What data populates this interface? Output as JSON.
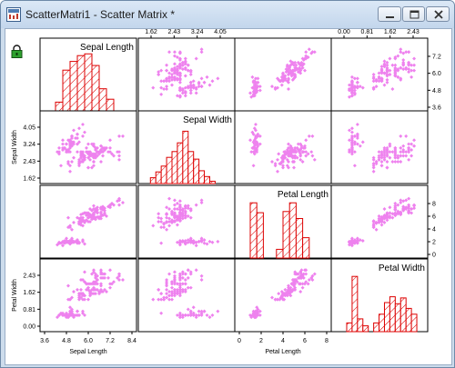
{
  "window": {
    "title": "ScatterMatri1 - Scatter Matrix *",
    "icons": {
      "app": "scatter-matrix-window-icon",
      "lock": "lock-icon",
      "minimize": "minimize-icon",
      "maximize": "maximize-icon",
      "close": "close-icon"
    }
  },
  "colors": {
    "points": "#ee82ee",
    "hist_fill": "#ffffff",
    "hist_stroke": "#dd0000",
    "frame": "#000000"
  },
  "chart_data": {
    "type": "scatter_matrix",
    "variables": [
      "Sepal Length",
      "Sepal Width",
      "Petal Length",
      "Petal Width"
    ],
    "diagonal_labels": [
      "Sepal Length",
      "Sepal Width",
      "Petal Length",
      "Petal Width"
    ],
    "bottom_axis_labels": [
      "Sepal Length",
      "",
      "Petal Length",
      ""
    ],
    "left_axis_labels": [
      "",
      "Sepal Width",
      "",
      "Petal Width"
    ],
    "bottom_ticks": [
      [
        "3.6",
        "4.8",
        "6.0",
        "7.2",
        "8.4"
      ],
      [],
      [
        "0",
        "2",
        "4",
        "6",
        "8"
      ],
      []
    ],
    "top_ticks": [
      [],
      [
        "1.62",
        "2.43",
        "3.24",
        "4.05"
      ],
      [],
      [
        "0.00",
        "0.81",
        "1.62",
        "2.43"
      ]
    ],
    "left_ticks": [
      [],
      [
        "4.05",
        "3.24",
        "2.43",
        "1.62"
      ],
      [],
      [
        "2.43",
        "1.62",
        "0.81",
        "0.00"
      ]
    ],
    "right_ticks": [
      [
        "7.2",
        "6.0",
        "4.8",
        "3.6"
      ],
      [],
      [
        "8",
        "6",
        "4",
        "2",
        "0"
      ],
      []
    ],
    "ranges": [
      [
        3.6,
        8.4
      ],
      [
        1.62,
        4.86
      ],
      [
        0,
        8
      ],
      [
        -0.405,
        2.835
      ]
    ],
    "histograms": [
      {
        "variable": "Sepal Length",
        "bin_edges": [
          4.2,
          4.6,
          5.0,
          5.4,
          5.8,
          6.2,
          6.6,
          7.0,
          7.4,
          7.8,
          8.2
        ],
        "heights": [
          0.15,
          0.7,
          0.85,
          0.95,
          0.98,
          0.78,
          0.38,
          0.2,
          0.0,
          0.0
        ]
      },
      {
        "variable": "Sepal Width",
        "bin_edges": [
          1.9,
          2.1,
          2.3,
          2.5,
          2.7,
          2.9,
          3.1,
          3.3,
          3.5,
          3.7,
          3.9,
          4.1,
          4.3
        ],
        "heights": [
          0.1,
          0.2,
          0.3,
          0.45,
          0.55,
          0.7,
          0.9,
          0.55,
          0.42,
          0.22,
          0.12,
          0.04
        ]
      },
      {
        "variable": "Petal Length",
        "bin_edges": [
          1.0,
          1.6,
          2.2,
          2.8,
          3.4,
          4.0,
          4.6,
          5.2,
          5.8,
          6.4
        ],
        "heights": [
          0.95,
          0.78,
          0.0,
          0.0,
          0.15,
          0.8,
          0.95,
          0.68,
          0.35
        ]
      },
      {
        "variable": "Petal Width",
        "bin_edges": [
          0.0,
          0.2,
          0.4,
          0.6,
          0.8,
          1.0,
          1.2,
          1.4,
          1.6,
          1.8,
          2.0,
          2.2,
          2.4,
          2.6
        ],
        "heights": [
          0.15,
          0.95,
          0.22,
          0.1,
          0.0,
          0.15,
          0.3,
          0.5,
          0.6,
          0.48,
          0.58,
          0.4,
          0.3,
          0.2
        ]
      }
    ],
    "points": [
      [
        5.1,
        3.5,
        1.4,
        0.2
      ],
      [
        4.9,
        3.0,
        1.4,
        0.2
      ],
      [
        4.7,
        3.2,
        1.3,
        0.2
      ],
      [
        4.6,
        3.1,
        1.5,
        0.2
      ],
      [
        5.0,
        3.6,
        1.4,
        0.2
      ],
      [
        5.4,
        3.9,
        1.7,
        0.4
      ],
      [
        4.6,
        3.4,
        1.4,
        0.3
      ],
      [
        5.0,
        3.4,
        1.5,
        0.2
      ],
      [
        4.4,
        2.9,
        1.4,
        0.2
      ],
      [
        4.9,
        3.1,
        1.5,
        0.1
      ],
      [
        5.4,
        3.7,
        1.5,
        0.2
      ],
      [
        4.8,
        3.4,
        1.6,
        0.2
      ],
      [
        4.8,
        3.0,
        1.4,
        0.1
      ],
      [
        4.3,
        3.0,
        1.1,
        0.1
      ],
      [
        5.8,
        4.0,
        1.2,
        0.2
      ],
      [
        5.7,
        4.4,
        1.5,
        0.4
      ],
      [
        5.4,
        3.9,
        1.3,
        0.4
      ],
      [
        5.1,
        3.5,
        1.4,
        0.3
      ],
      [
        5.7,
        3.8,
        1.7,
        0.3
      ],
      [
        5.1,
        3.8,
        1.5,
        0.3
      ],
      [
        5.4,
        3.4,
        1.7,
        0.2
      ],
      [
        5.1,
        3.7,
        1.5,
        0.4
      ],
      [
        4.6,
        3.6,
        1.0,
        0.2
      ],
      [
        5.1,
        3.3,
        1.7,
        0.5
      ],
      [
        4.8,
        3.4,
        1.9,
        0.2
      ],
      [
        5.0,
        3.0,
        1.6,
        0.2
      ],
      [
        5.0,
        3.4,
        1.6,
        0.4
      ],
      [
        5.2,
        3.5,
        1.5,
        0.2
      ],
      [
        5.2,
        3.4,
        1.4,
        0.2
      ],
      [
        4.7,
        3.2,
        1.6,
        0.2
      ],
      [
        4.8,
        3.1,
        1.6,
        0.2
      ],
      [
        5.4,
        3.4,
        1.5,
        0.4
      ],
      [
        5.2,
        4.1,
        1.5,
        0.1
      ],
      [
        5.5,
        4.2,
        1.4,
        0.2
      ],
      [
        4.9,
        3.1,
        1.5,
        0.2
      ],
      [
        5.0,
        3.2,
        1.2,
        0.2
      ],
      [
        5.5,
        3.5,
        1.3,
        0.2
      ],
      [
        4.9,
        3.6,
        1.4,
        0.1
      ],
      [
        4.4,
        3.0,
        1.3,
        0.2
      ],
      [
        5.1,
        3.4,
        1.5,
        0.2
      ],
      [
        5.0,
        3.5,
        1.3,
        0.3
      ],
      [
        4.5,
        2.3,
        1.3,
        0.3
      ],
      [
        4.4,
        3.2,
        1.3,
        0.2
      ],
      [
        5.0,
        3.5,
        1.6,
        0.6
      ],
      [
        5.1,
        3.8,
        1.9,
        0.4
      ],
      [
        4.8,
        3.0,
        1.4,
        0.3
      ],
      [
        5.1,
        3.8,
        1.6,
        0.2
      ],
      [
        4.6,
        3.2,
        1.4,
        0.2
      ],
      [
        5.3,
        3.7,
        1.5,
        0.2
      ],
      [
        5.0,
        3.3,
        1.4,
        0.2
      ],
      [
        7.0,
        3.2,
        4.7,
        1.4
      ],
      [
        6.4,
        3.2,
        4.5,
        1.5
      ],
      [
        6.9,
        3.1,
        4.9,
        1.5
      ],
      [
        5.5,
        2.3,
        4.0,
        1.3
      ],
      [
        6.5,
        2.8,
        4.6,
        1.5
      ],
      [
        5.7,
        2.8,
        4.5,
        1.3
      ],
      [
        6.3,
        3.3,
        4.7,
        1.6
      ],
      [
        4.9,
        2.4,
        3.3,
        1.0
      ],
      [
        6.6,
        2.9,
        4.6,
        1.3
      ],
      [
        5.2,
        2.7,
        3.9,
        1.4
      ],
      [
        5.0,
        2.0,
        3.5,
        1.0
      ],
      [
        5.9,
        3.0,
        4.2,
        1.5
      ],
      [
        6.0,
        2.2,
        4.0,
        1.0
      ],
      [
        6.1,
        2.9,
        4.7,
        1.4
      ],
      [
        5.6,
        2.9,
        3.6,
        1.3
      ],
      [
        6.7,
        3.1,
        4.4,
        1.4
      ],
      [
        5.6,
        3.0,
        4.5,
        1.5
      ],
      [
        5.8,
        2.7,
        4.1,
        1.0
      ],
      [
        6.2,
        2.2,
        4.5,
        1.5
      ],
      [
        5.6,
        2.5,
        3.9,
        1.1
      ],
      [
        5.9,
        3.2,
        4.8,
        1.8
      ],
      [
        6.1,
        2.8,
        4.0,
        1.3
      ],
      [
        6.3,
        2.5,
        4.9,
        1.5
      ],
      [
        6.1,
        2.8,
        4.7,
        1.2
      ],
      [
        6.4,
        2.9,
        4.3,
        1.3
      ],
      [
        6.6,
        3.0,
        4.4,
        1.4
      ],
      [
        6.8,
        2.8,
        4.8,
        1.4
      ],
      [
        6.7,
        3.0,
        5.0,
        1.7
      ],
      [
        6.0,
        2.9,
        4.5,
        1.5
      ],
      [
        5.7,
        2.6,
        3.5,
        1.0
      ],
      [
        5.5,
        2.4,
        3.8,
        1.1
      ],
      [
        5.5,
        2.4,
        3.7,
        1.0
      ],
      [
        5.8,
        2.7,
        3.9,
        1.2
      ],
      [
        6.0,
        2.7,
        5.1,
        1.6
      ],
      [
        5.4,
        3.0,
        4.5,
        1.5
      ],
      [
        6.0,
        3.4,
        4.5,
        1.6
      ],
      [
        6.7,
        3.1,
        4.7,
        1.5
      ],
      [
        6.3,
        2.3,
        4.4,
        1.3
      ],
      [
        5.6,
        3.0,
        4.1,
        1.3
      ],
      [
        5.5,
        2.5,
        4.0,
        1.3
      ],
      [
        5.5,
        2.6,
        4.4,
        1.2
      ],
      [
        6.1,
        3.0,
        4.6,
        1.4
      ],
      [
        5.8,
        2.6,
        4.0,
        1.2
      ],
      [
        5.0,
        2.3,
        3.3,
        1.0
      ],
      [
        5.6,
        2.7,
        4.2,
        1.3
      ],
      [
        5.7,
        3.0,
        4.2,
        1.2
      ],
      [
        5.7,
        2.9,
        4.2,
        1.3
      ],
      [
        6.2,
        2.9,
        4.3,
        1.3
      ],
      [
        5.1,
        2.5,
        3.0,
        1.1
      ],
      [
        5.7,
        2.8,
        4.1,
        1.3
      ],
      [
        6.3,
        3.3,
        6.0,
        2.5
      ],
      [
        5.8,
        2.7,
        5.1,
        1.9
      ],
      [
        7.1,
        3.0,
        5.9,
        2.1
      ],
      [
        6.3,
        2.9,
        5.6,
        1.8
      ],
      [
        6.5,
        3.0,
        5.8,
        2.2
      ],
      [
        7.6,
        3.0,
        6.6,
        2.1
      ],
      [
        4.9,
        2.5,
        4.5,
        1.7
      ],
      [
        7.3,
        2.9,
        6.3,
        1.8
      ],
      [
        6.7,
        2.5,
        5.8,
        1.8
      ],
      [
        7.2,
        3.6,
        6.1,
        2.5
      ],
      [
        6.5,
        3.2,
        5.1,
        2.0
      ],
      [
        6.4,
        2.7,
        5.3,
        1.9
      ],
      [
        6.8,
        3.0,
        5.5,
        2.1
      ],
      [
        5.7,
        2.5,
        5.0,
        2.0
      ],
      [
        5.8,
        2.8,
        5.1,
        2.4
      ],
      [
        6.4,
        3.2,
        5.3,
        2.3
      ],
      [
        6.5,
        3.0,
        5.5,
        1.8
      ],
      [
        7.7,
        3.8,
        6.7,
        2.2
      ],
      [
        7.7,
        2.6,
        6.9,
        2.3
      ],
      [
        6.0,
        2.2,
        5.0,
        1.5
      ],
      [
        6.9,
        3.2,
        5.7,
        2.3
      ],
      [
        5.6,
        2.8,
        4.9,
        2.0
      ],
      [
        7.7,
        2.8,
        6.7,
        2.0
      ],
      [
        6.3,
        2.7,
        4.9,
        1.8
      ],
      [
        6.7,
        3.3,
        5.7,
        2.1
      ],
      [
        7.2,
        3.2,
        6.0,
        1.8
      ],
      [
        6.2,
        2.8,
        4.8,
        1.8
      ],
      [
        6.1,
        3.0,
        4.9,
        1.8
      ],
      [
        6.4,
        2.8,
        5.6,
        2.1
      ],
      [
        7.2,
        3.0,
        5.8,
        1.6
      ],
      [
        7.4,
        2.8,
        6.1,
        1.9
      ],
      [
        7.9,
        3.8,
        6.4,
        2.0
      ],
      [
        6.4,
        2.8,
        5.6,
        2.2
      ],
      [
        6.3,
        2.8,
        5.1,
        1.5
      ],
      [
        6.1,
        2.6,
        5.6,
        1.4
      ],
      [
        7.7,
        3.0,
        6.1,
        2.3
      ],
      [
        6.3,
        3.4,
        5.6,
        2.4
      ],
      [
        6.4,
        3.1,
        5.5,
        1.8
      ],
      [
        6.0,
        3.0,
        4.8,
        1.8
      ],
      [
        6.9,
        3.1,
        5.4,
        2.1
      ],
      [
        6.7,
        3.1,
        5.6,
        2.4
      ],
      [
        6.9,
        3.1,
        5.1,
        2.3
      ],
      [
        5.8,
        2.7,
        5.1,
        1.9
      ],
      [
        6.8,
        3.2,
        5.9,
        2.3
      ],
      [
        6.7,
        3.3,
        5.7,
        2.5
      ],
      [
        6.7,
        3.0,
        5.2,
        2.3
      ],
      [
        6.3,
        2.5,
        5.0,
        1.9
      ],
      [
        6.5,
        3.0,
        5.2,
        2.0
      ],
      [
        6.2,
        3.4,
        5.4,
        2.3
      ],
      [
        5.9,
        3.0,
        5.1,
        1.8
      ]
    ]
  }
}
